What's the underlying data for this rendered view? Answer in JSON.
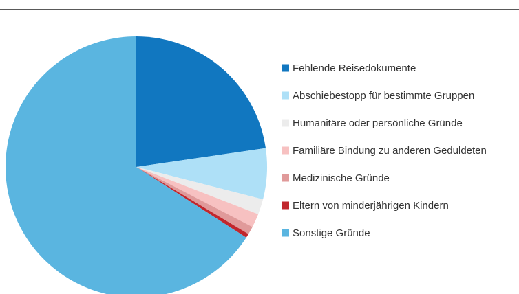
{
  "chart_data": {
    "type": "pie",
    "categories": [
      "Fehlende Reisedokumente",
      "Abschiebestopp für bestimmte Gruppen",
      "Humanitäre oder persönliche Gründe",
      "Familiäre Bindung zu anderen Geduldeten",
      "Medizinische Gründe",
      "Eltern von minderjährigen Kindern",
      "Sonstige Gründe"
    ],
    "values": [
      22.7,
      6.3,
      1.9,
      1.7,
      1.0,
      0.5,
      65.9
    ],
    "colors": [
      "#1177c0",
      "#aee0f7",
      "#ececec",
      "#f7c1c1",
      "#e09a9a",
      "#c1272d",
      "#5ab5e0"
    ],
    "legend": "right"
  }
}
